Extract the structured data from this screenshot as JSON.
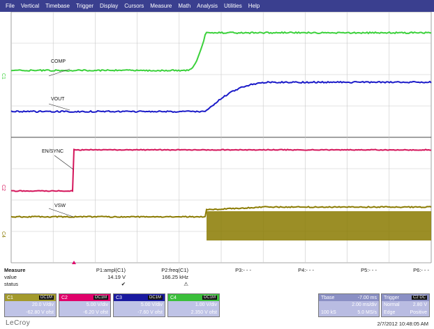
{
  "menu": [
    "File",
    "Vertical",
    "Timebase",
    "Trigger",
    "Display",
    "Cursors",
    "Measure",
    "Math",
    "Analysis",
    "Utilities",
    "Help"
  ],
  "traces": {
    "comp": {
      "label": "COMP",
      "marker": "C1",
      "color": "#3bd13b"
    },
    "vout": {
      "label": "VOUT",
      "marker": "C3",
      "color": "#1a1ac8"
    },
    "ensync": {
      "label": "EN/SYNC",
      "marker": "C2",
      "color": "#d4145a"
    },
    "vsw": {
      "label": "VSW",
      "marker": "C4",
      "color": "#8a7a00"
    }
  },
  "measure": {
    "title": "Measure",
    "row_value": "value",
    "row_status": "status",
    "params": [
      {
        "name": "P1:ampl(C1)",
        "value": "14.19 V",
        "status": "✔"
      },
      {
        "name": "P2:freq(C1)",
        "value": "166.25 kHz",
        "status": "⚠"
      },
      {
        "name": "P3:- - -",
        "value": "",
        "status": ""
      },
      {
        "name": "P4:- - -",
        "value": "",
        "status": ""
      },
      {
        "name": "P5:- - -",
        "value": "",
        "status": ""
      },
      {
        "name": "P6:- - -",
        "value": "",
        "status": ""
      }
    ]
  },
  "channels": [
    {
      "id": "C1",
      "coupling": "DC1M",
      "vdiv": "20.0 V/div",
      "offset": "-62.80 V ofst",
      "color": "#a39a2c"
    },
    {
      "id": "C2",
      "coupling": "DC1M",
      "vdiv": "5.00 V/div",
      "offset": "-6.20 V ofst",
      "color": "#e0006a"
    },
    {
      "id": "C3",
      "coupling": "DC1M",
      "vdiv": "5.00 V/div",
      "offset": "-7.60 V ofst",
      "color": "#1a1aa0"
    },
    {
      "id": "C4",
      "coupling": "DC1M",
      "vdiv": "1.00 V/div",
      "offset": "2.350 V ofst",
      "color": "#3bbf3b"
    }
  ],
  "timebase": {
    "label": "Tbase",
    "delay": "-7.00 ms",
    "tdiv": "2.00 ms/div",
    "samples": "100 kS",
    "rate": "5.0 MS/s"
  },
  "trigger": {
    "label": "Trigger",
    "source": "C2 DC",
    "mode": "Normal",
    "level": "2.80 V",
    "type": "Edge",
    "slope": "Positive"
  },
  "brand": "LeCroy",
  "timestamp": "2/7/2012 10:48:05 AM"
}
